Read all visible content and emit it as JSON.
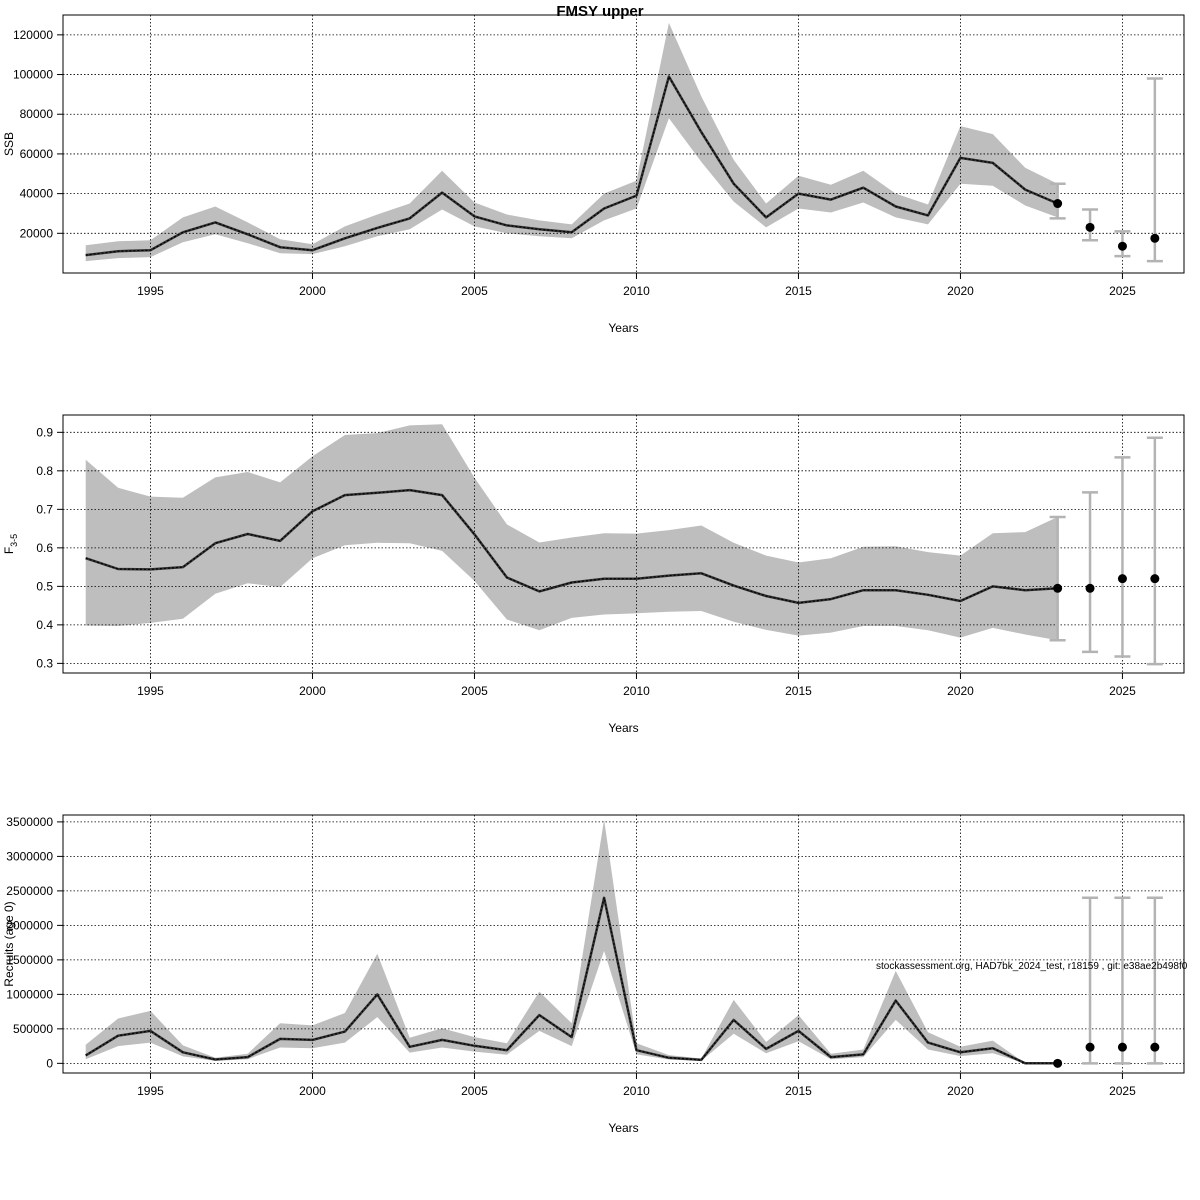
{
  "figure_title": "FMSY upper",
  "footer_note": "stockassessment.org, HAD7bk_2024_test, r18159 , git: e38ae2b498f0",
  "colors": {
    "band": "#bebebe",
    "line": "#000000",
    "grid": "#000000",
    "errorbar": "#b3b3b3",
    "point": "#000000"
  },
  "chart_data": [
    {
      "type": "line",
      "id": "ssb",
      "title": "FMSY upper",
      "xlabel": "Years",
      "ylabel": "SSB",
      "xlim": [
        1992.3,
        2026.9
      ],
      "ylim": [
        0,
        130000
      ],
      "x_ticks": [
        1995,
        2000,
        2005,
        2010,
        2015,
        2020,
        2025
      ],
      "y_ticks": [
        20000,
        40000,
        60000,
        80000,
        100000,
        120000
      ],
      "y_tick_labels": [
        "20000",
        "40000",
        "60000",
        "80000",
        "100000",
        "120000"
      ],
      "grid": true,
      "years": [
        1993,
        1994,
        1995,
        1996,
        1997,
        1998,
        1999,
        2000,
        2001,
        2002,
        2003,
        2004,
        2005,
        2006,
        2007,
        2008,
        2009,
        2010,
        2011,
        2012,
        2013,
        2014,
        2015,
        2016,
        2017,
        2018,
        2019,
        2020,
        2021,
        2022,
        2023
      ],
      "estimate": [
        9000,
        11000,
        11500,
        20500,
        25500,
        19500,
        13000,
        11500,
        17500,
        22700,
        27500,
        40500,
        28500,
        24000,
        22000,
        20500,
        32500,
        39000,
        99000,
        71000,
        45000,
        28000,
        40000,
        37000,
        43000,
        33500,
        29000,
        58000,
        55500,
        42000,
        35000
      ],
      "lower": [
        6000,
        7500,
        8000,
        15500,
        19500,
        15000,
        10000,
        9500,
        13500,
        18500,
        22000,
        32000,
        23500,
        20000,
        18500,
        17500,
        26500,
        32500,
        78000,
        56000,
        36000,
        23000,
        32500,
        30500,
        35500,
        28000,
        24500,
        45000,
        44000,
        34000,
        28000
      ],
      "upper": [
        14000,
        16000,
        16500,
        28000,
        33500,
        25500,
        17000,
        14500,
        23500,
        29500,
        35000,
        51500,
        35500,
        29500,
        26500,
        24500,
        40000,
        46500,
        126000,
        89000,
        57000,
        35000,
        49000,
        44500,
        51500,
        40000,
        34500,
        74000,
        70000,
        53000,
        45000
      ],
      "forecast": [
        {
          "year": 2023,
          "value": 35000,
          "low": 27500,
          "high": 45000
        },
        {
          "year": 2024,
          "value": 23000,
          "low": 16500,
          "high": 32000
        },
        {
          "year": 2025,
          "value": 13500,
          "low": 8500,
          "high": 21000
        },
        {
          "year": 2026,
          "value": 17500,
          "low": 6000,
          "high": 98000
        }
      ]
    },
    {
      "type": "line",
      "id": "f35",
      "xlabel": "Years",
      "ylabel": "F",
      "ylabel_sub": "3-5",
      "xlim": [
        1992.3,
        2026.9
      ],
      "ylim": [
        0.275,
        0.945
      ],
      "x_ticks": [
        1995,
        2000,
        2005,
        2010,
        2015,
        2020,
        2025
      ],
      "y_ticks": [
        0.3,
        0.4,
        0.5,
        0.6,
        0.7,
        0.8,
        0.9
      ],
      "y_tick_labels": [
        "0.3",
        "0.4",
        "0.5",
        "0.6",
        "0.7",
        "0.8",
        "0.9"
      ],
      "grid": true,
      "years": [
        1993,
        1994,
        1995,
        1996,
        1997,
        1998,
        1999,
        2000,
        2001,
        2002,
        2003,
        2004,
        2005,
        2006,
        2007,
        2008,
        2009,
        2010,
        2011,
        2012,
        2013,
        2014,
        2015,
        2016,
        2017,
        2018,
        2019,
        2020,
        2021,
        2022,
        2023
      ],
      "estimate": [
        0.573,
        0.545,
        0.544,
        0.55,
        0.612,
        0.636,
        0.618,
        0.695,
        0.737,
        0.743,
        0.75,
        0.737,
        0.635,
        0.523,
        0.487,
        0.51,
        0.52,
        0.52,
        0.528,
        0.534,
        0.502,
        0.475,
        0.457,
        0.467,
        0.49,
        0.49,
        0.478,
        0.462,
        0.5,
        0.49,
        0.495
      ],
      "lower": [
        0.398,
        0.397,
        0.405,
        0.416,
        0.481,
        0.508,
        0.498,
        0.573,
        0.607,
        0.613,
        0.612,
        0.592,
        0.514,
        0.414,
        0.386,
        0.418,
        0.427,
        0.43,
        0.434,
        0.436,
        0.408,
        0.387,
        0.372,
        0.38,
        0.397,
        0.397,
        0.386,
        0.367,
        0.392,
        0.375,
        0.36
      ],
      "upper": [
        0.829,
        0.756,
        0.733,
        0.73,
        0.783,
        0.797,
        0.77,
        0.838,
        0.893,
        0.898,
        0.918,
        0.921,
        0.782,
        0.661,
        0.614,
        0.627,
        0.638,
        0.637,
        0.646,
        0.658,
        0.613,
        0.58,
        0.562,
        0.573,
        0.603,
        0.604,
        0.589,
        0.58,
        0.638,
        0.641,
        0.68
      ],
      "forecast": [
        {
          "year": 2023,
          "value": 0.495,
          "low": 0.36,
          "high": 0.68
        },
        {
          "year": 2024,
          "value": 0.495,
          "low": 0.33,
          "high": 0.744
        },
        {
          "year": 2025,
          "value": 0.52,
          "low": 0.318,
          "high": 0.835
        },
        {
          "year": 2026,
          "value": 0.52,
          "low": 0.298,
          "high": 0.886
        }
      ]
    },
    {
      "type": "line",
      "id": "recruits",
      "xlabel": "Years",
      "ylabel": "Recruits (age 0)",
      "xlim": [
        1992.3,
        2026.9
      ],
      "ylim": [
        -140000,
        3600000
      ],
      "x_ticks": [
        1995,
        2000,
        2005,
        2010,
        2015,
        2020,
        2025
      ],
      "y_ticks": [
        0,
        500000,
        1000000,
        1500000,
        2000000,
        2500000,
        3000000,
        3500000
      ],
      "y_tick_labels": [
        "0",
        "500000",
        "1000000",
        "1500000",
        "2000000",
        "2500000",
        "3000000",
        "3500000"
      ],
      "grid": true,
      "years": [
        1993,
        1994,
        1995,
        1996,
        1997,
        1998,
        1999,
        2000,
        2001,
        2002,
        2003,
        2004,
        2005,
        2006,
        2007,
        2008,
        2009,
        2010,
        2011,
        2012,
        2013,
        2014,
        2015,
        2016,
        2017,
        2018,
        2019,
        2020,
        2021,
        2022,
        2023
      ],
      "estimate": [
        115000,
        400000,
        470000,
        160000,
        55000,
        90000,
        355000,
        340000,
        460000,
        1000000,
        240000,
        340000,
        255000,
        190000,
        700000,
        380000,
        2400000,
        190000,
        80000,
        50000,
        630000,
        210000,
        470000,
        90000,
        130000,
        910000,
        300000,
        160000,
        220000,
        0,
        0
      ],
      "lower": [
        60000,
        250000,
        300000,
        100000,
        35000,
        60000,
        230000,
        220000,
        300000,
        670000,
        155000,
        230000,
        170000,
        125000,
        470000,
        250000,
        1630000,
        130000,
        55000,
        35000,
        430000,
        145000,
        320000,
        60000,
        90000,
        630000,
        200000,
        105000,
        145000,
        0,
        0
      ],
      "upper": [
        270000,
        650000,
        760000,
        260000,
        80000,
        140000,
        580000,
        550000,
        730000,
        1590000,
        370000,
        510000,
        380000,
        290000,
        1040000,
        580000,
        3530000,
        290000,
        120000,
        70000,
        920000,
        310000,
        700000,
        140000,
        200000,
        1340000,
        450000,
        240000,
        330000,
        0,
        0
      ],
      "forecast": [
        {
          "year": 2023,
          "value": 0,
          "low": 0,
          "high": 0
        },
        {
          "year": 2024,
          "value": 235000,
          "low": 0,
          "high": 2400000
        },
        {
          "year": 2025,
          "value": 235000,
          "low": 0,
          "high": 2400000
        },
        {
          "year": 2026,
          "value": 235000,
          "low": 0,
          "high": 2400000
        }
      ]
    }
  ]
}
